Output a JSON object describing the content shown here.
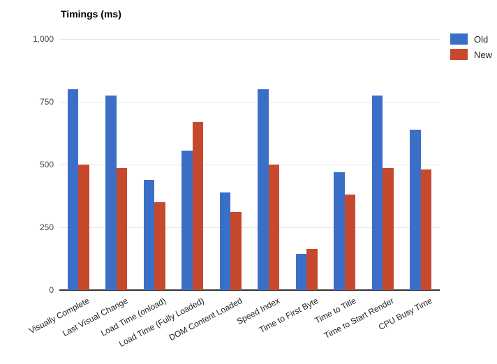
{
  "chart_data": {
    "type": "bar",
    "title": "Timings (ms)",
    "categories": [
      "Visually Complete",
      "Last Visual Change",
      "Load Time (onload)",
      "Load Time (Fully Loaded)",
      "DOM Content Loaded",
      "Speed Index",
      "Time to First Byte",
      "Time to Title",
      "Time to Start Render",
      "CPU Busy Time"
    ],
    "series": [
      {
        "name": "Old",
        "color": "#3B6FC7",
        "values": [
          800,
          775,
          440,
          555,
          390,
          800,
          145,
          470,
          775,
          640
        ]
      },
      {
        "name": "New",
        "color": "#C6492E",
        "values": [
          500,
          485,
          350,
          670,
          310,
          500,
          165,
          380,
          485,
          480
        ]
      }
    ],
    "xlabel": "",
    "ylabel": "",
    "ylim": [
      0,
      1000
    ],
    "yticks": [
      0,
      250,
      500,
      750,
      1000
    ],
    "ytick_labels": [
      "0",
      "250",
      "500",
      "750",
      "1,000"
    ],
    "grid": true,
    "legend_position": "top-right",
    "colors": {
      "gridline": "#e6e6e6",
      "axis_line": "#333333",
      "axis_text": "#444444",
      "category_text": "#222222",
      "title_text": "#000000",
      "background": "#ffffff"
    }
  }
}
